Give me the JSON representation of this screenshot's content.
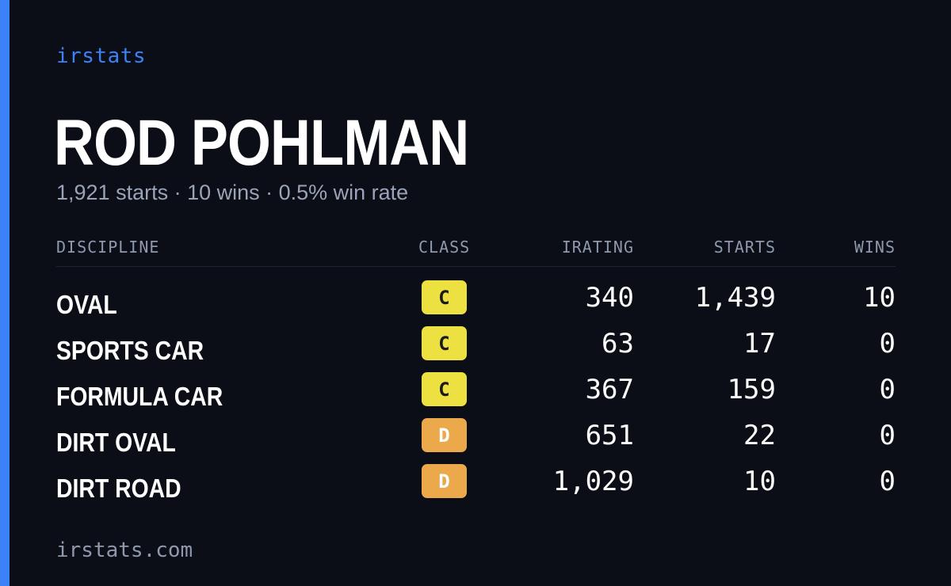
{
  "brand": "irstats",
  "driver": {
    "name": "ROD POHLMAN",
    "summary": "1,921 starts · 10 wins · 0.5% win rate"
  },
  "table": {
    "headers": {
      "discipline": "DISCIPLINE",
      "class": "CLASS",
      "irating": "IRATING",
      "starts": "STARTS",
      "wins": "WINS"
    },
    "rows": [
      {
        "discipline": "OVAL",
        "class": "C",
        "class_color": "#ede142",
        "irating": "340",
        "starts": "1,439",
        "wins": "10"
      },
      {
        "discipline": "SPORTS CAR",
        "class": "C",
        "class_color": "#ede142",
        "irating": "63",
        "starts": "17",
        "wins": "0"
      },
      {
        "discipline": "FORMULA CAR",
        "class": "C",
        "class_color": "#ede142",
        "irating": "367",
        "starts": "159",
        "wins": "0"
      },
      {
        "discipline": "DIRT OVAL",
        "class": "D",
        "class_color": "#eba94c",
        "irating": "651",
        "starts": "22",
        "wins": "0"
      },
      {
        "discipline": "DIRT ROAD",
        "class": "D",
        "class_color": "#eba94c",
        "irating": "1,029",
        "starts": "10",
        "wins": "0"
      }
    ]
  },
  "footer": "irstats.com",
  "colors": {
    "background": "#0b0e16",
    "accent": "#3b82f6"
  }
}
